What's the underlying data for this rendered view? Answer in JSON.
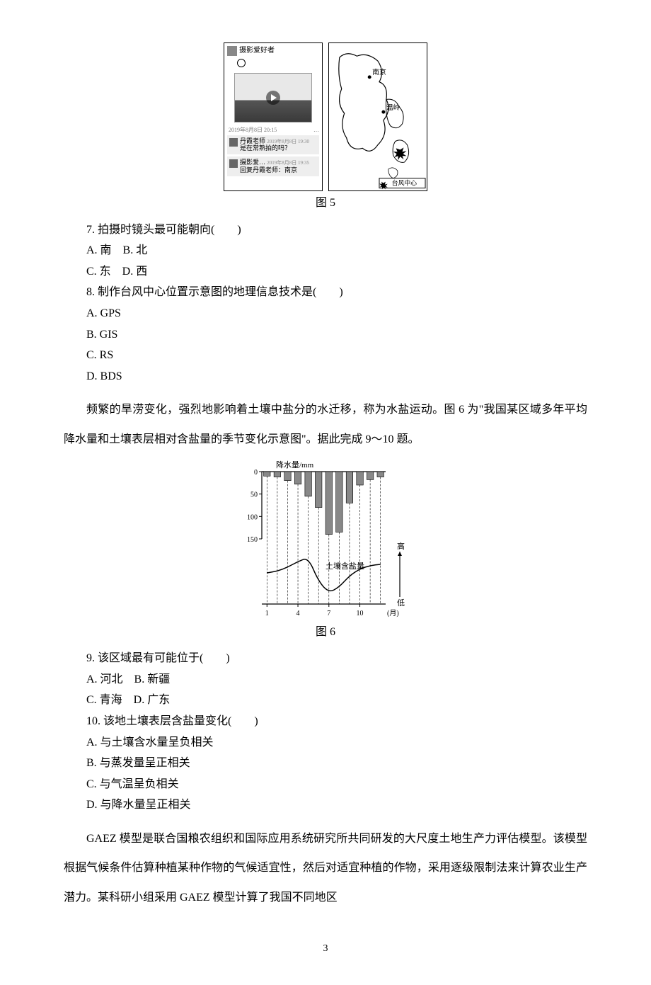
{
  "fig5": {
    "caption": "图 5",
    "left": {
      "user": "摄影爱好者",
      "timestamp": "2019年8月8日 20:15",
      "dots": "…",
      "comment1_user": "丹霞老师",
      "comment1_time": "2019年8月8日 19:30",
      "comment1_text": "是在常熟拍的吗？",
      "comment2_user": "摄影爱…",
      "comment2_time": "2019年8月8日 19:35",
      "comment2_text": "回复丹霞老师：南京"
    },
    "right": {
      "city1": "南京",
      "city2": "温岭",
      "legend": "台风中心",
      "outline_color": "#000000",
      "city_dot_color": "#000000"
    }
  },
  "q7": {
    "text": "7. 拍摄时镜头最可能朝向(　　)",
    "opts_line1": "A. 南　B. 北",
    "opts_line2": "C. 东　D. 西"
  },
  "q8": {
    "text": "8. 制作台风中心位置示意图的地理信息技术是(　　)",
    "optA": "A. GPS",
    "optB": "B. GIS",
    "optC": "C. RS",
    "optD": "D. BDS"
  },
  "passage_910": "频繁的旱涝变化，强烈地影响着土壤中盐分的水迁移，称为水盐运动。图 6 为\"我国某区域多年平均降水量和土壤表层相对含盐量的季节变化示意图\"。据此完成 9～10 题。",
  "fig6": {
    "caption": "图 6",
    "ylabel": "降水量/mm",
    "yticks": [
      "0",
      "50",
      "100",
      "150"
    ],
    "xticks": [
      "1",
      "4",
      "7",
      "10"
    ],
    "xlabel": "(月)",
    "precip_values": [
      10,
      12,
      20,
      28,
      55,
      80,
      140,
      135,
      70,
      30,
      18,
      12
    ],
    "salt_label": "土壤含盐量",
    "axis2_hi": "高",
    "axis2_lo": "低",
    "bar_color": "#888888",
    "grid_color": "#000000",
    "background": "#ffffff"
  },
  "q9": {
    "text": "9. 该区域最有可能位于(　　)",
    "opts_line1": "A. 河北　B. 新疆",
    "opts_line2": "C. 青海　D. 广东"
  },
  "q10": {
    "text": "10. 该地土壤表层含盐量变化(　　)",
    "optA": "A. 与土壤含水量呈负相关",
    "optB": "B. 与蒸发量呈正相关",
    "optC": "C. 与气温呈负相关",
    "optD": "D. 与降水量呈正相关"
  },
  "passage_gaez": "GAEZ 模型是联合国粮农组织和国际应用系统研究所共同研发的大尺度土地生产力评估模型。该模型根据气候条件估算种植某种作物的气候适宜性，然后对适宜种植的作物，采用逐级限制法来计算农业生产潜力。某科研小组采用 GAEZ 模型计算了我国不同地区",
  "page_number": "3"
}
